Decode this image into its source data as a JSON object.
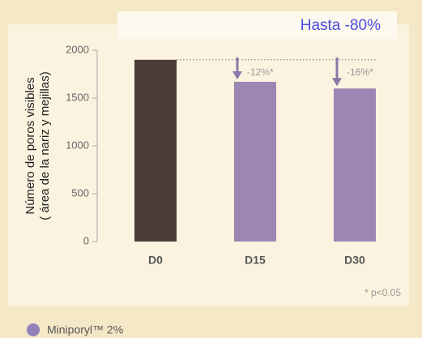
{
  "chart_data": {
    "type": "bar",
    "headline": "Hasta -80%",
    "ylabel": [
      "Número de poros visibles",
      "( área de la nariz y mejillas)"
    ],
    "categories": [
      "D0",
      "D15",
      "D30"
    ],
    "values": [
      1900,
      1670,
      1600
    ],
    "colors": [
      "#4b3d37",
      "#9b87b2",
      "#9b87b2"
    ],
    "ylim": [
      0,
      2000
    ],
    "yticks": [
      0,
      500,
      1000,
      1500,
      2000
    ],
    "reduction_labels": [
      null,
      "-12%*",
      "-16%*"
    ],
    "footnote": "* p<0.05",
    "legend": {
      "name": "Miniporyl™ 2%",
      "color": "#9282b9"
    }
  }
}
